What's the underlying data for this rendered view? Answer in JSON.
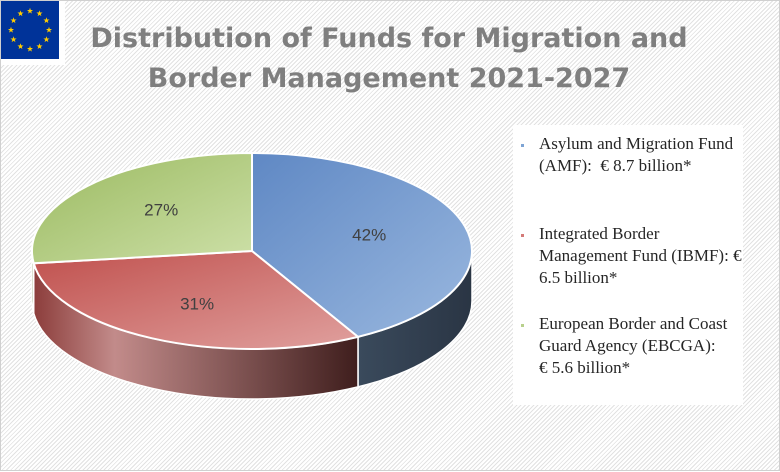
{
  "header": {
    "title_line1": "Distribution of Funds for Migration and",
    "title_line2": "Border Management 2021-2027",
    "logo_icon": "eu-flag-icon"
  },
  "chart_data": {
    "type": "pie",
    "title": "Distribution of Funds for Migration and Border Management 2021-2027",
    "labels": [
      "Asylum and Migration Fund (AMF): € 8.7 billion*",
      "Integrated Border Management Fund (IBMF): € 6.5 billion*",
      "European Border and Coast Guard Agency (EBCGA):      € 5.6 billion*"
    ],
    "values": [
      42,
      31,
      27
    ],
    "value_labels": [
      "42%",
      "31%",
      "27%"
    ],
    "colors": [
      "#7ea4d4",
      "#d47a78",
      "#b8d08c"
    ],
    "legend_position": "right"
  },
  "legend": {
    "items": [
      {
        "text": "Asylum and Migration Fund (AMF):  € 8.7 billion*",
        "color": "#7ea4d4"
      },
      {
        "text": "Integrated Border Management Fund (IBMF): € 6.5 billion*",
        "color": "#d47a78"
      },
      {
        "text": "European Border and Coast Guard Agency (EBCGA):      € 5.6 billion*",
        "color": "#b8d08c"
      }
    ]
  }
}
